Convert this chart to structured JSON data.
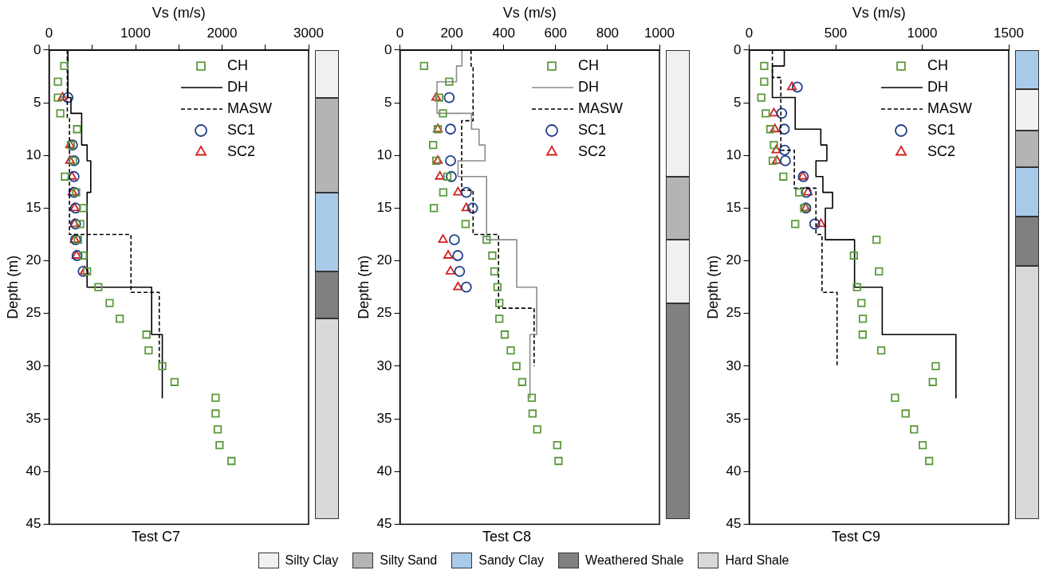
{
  "chart_data": [
    {
      "type": "scatter",
      "title": "Test C7",
      "xlabel": "Vs (m/s)",
      "ylabel": "Depth (m)",
      "xlim": [
        0,
        3000
      ],
      "xticks": [
        0,
        {
          "value": 500,
          "label": null
        },
        1000,
        {
          "value": 1500,
          "label": null
        },
        2000,
        {
          "value": 2500,
          "label": null
        },
        3000
      ],
      "ylim": [
        45,
        0
      ],
      "yticks": [
        0,
        5,
        10,
        15,
        20,
        25,
        30,
        35,
        40,
        45
      ],
      "grid": false,
      "legend": "top right",
      "series": [
        {
          "name": "CH",
          "type": "scatter",
          "marker": "square",
          "color": "#5b9a3c",
          "x": [
            176,
            102,
            102,
            130,
            324,
            253,
            278,
            183,
            313,
            394,
            359,
            334,
            394,
            440,
            570,
            700,
            817,
            1126,
            1151,
            1309,
            1450,
            1925,
            1925,
            1950,
            1971,
            2108
          ],
          "values": [
            1.5,
            3,
            4.5,
            6,
            7.5,
            9,
            10.5,
            12,
            13.5,
            15,
            16.5,
            18,
            19.5,
            21,
            22.5,
            24,
            25.5,
            27,
            28.5,
            30,
            31.5,
            33,
            34.5,
            36,
            37.5,
            39
          ]
        },
        {
          "name": "DH",
          "type": "line",
          "line_style": "solid",
          "color": "#000000",
          "x": [
            218,
            218,
            253,
            253,
            377,
            377,
            440,
            440,
            482,
            482,
            440,
            440,
            1186,
            1186,
            1309,
            1309
          ],
          "values": [
            0,
            4.5,
            4.5,
            6,
            6,
            9,
            9,
            10.5,
            10.5,
            13.5,
            13.5,
            22.5,
            22.5,
            27,
            27,
            33
          ]
        },
        {
          "name": "MASW",
          "type": "line",
          "line_style": "dashed",
          "color": "#000000",
          "x": [
            211,
            211,
            236,
            236,
            947,
            947,
            1274,
            1274
          ],
          "values": [
            0,
            6.5,
            6.5,
            17.5,
            17.5,
            23,
            23,
            30
          ]
        },
        {
          "name": "SC1",
          "type": "scatter",
          "marker": "circle",
          "color": "#1f3f8a",
          "x": [
            218,
            271,
            289,
            289,
            289,
            306,
            306,
            306,
            324,
            394
          ],
          "values": [
            4.5,
            9,
            10.5,
            12,
            13.5,
            15,
            16.5,
            18,
            19.5,
            21
          ]
        },
        {
          "name": "SC2",
          "type": "scatter",
          "marker": "triangle",
          "color": "#d42020",
          "x": [
            155,
            243,
            243,
            264,
            271,
            296,
            296,
            296,
            317,
            412
          ],
          "values": [
            4.5,
            9,
            10.5,
            12,
            13.5,
            15,
            16.5,
            18,
            19.5,
            21
          ]
        }
      ],
      "annotations": [
        "Silty Clay",
        "Silty Sand",
        "Sandy Clay",
        "Weathered Shale",
        "Hard Shale"
      ]
    },
    {
      "type": "scatter",
      "title": "Test C8",
      "xlabel": "Vs (m/s)",
      "ylabel": "Depth (m)",
      "xlim": [
        0,
        1000
      ],
      "xticks": [
        0,
        200,
        400,
        600,
        800,
        1000
      ],
      "ylim": [
        45,
        0
      ],
      "yticks": [
        0,
        5,
        10,
        15,
        20,
        25,
        30,
        35,
        40,
        45
      ],
      "grid": false,
      "legend": "top right",
      "series": [
        {
          "name": "CH",
          "type": "scatter",
          "marker": "square",
          "color": "#5b9a3c",
          "x": [
            93,
            190,
            151,
            166,
            146,
            128,
            140,
            183,
            167,
            131,
            253,
            334,
            356,
            364,
            376,
            383,
            383,
            404,
            427,
            449,
            471,
            508,
            511,
            529,
            606,
            611
          ],
          "values": [
            1.5,
            3,
            4.5,
            6,
            7.5,
            9,
            10.5,
            12,
            13.5,
            15,
            16.5,
            18,
            19.5,
            21,
            22.5,
            24,
            25.5,
            27,
            28.5,
            30,
            31.5,
            33,
            34.5,
            36,
            37.5,
            39
          ]
        },
        {
          "name": "DH",
          "type": "line",
          "line_style": "solid",
          "color": "#8c8c8c",
          "x": [
            239,
            239,
            218,
            218,
            143,
            143,
            276,
            276,
            305,
            305,
            328,
            328,
            224,
            224,
            334,
            334,
            450,
            450,
            527,
            527,
            501,
            501
          ],
          "values": [
            0,
            1.5,
            1.5,
            3,
            3,
            6,
            6,
            7.5,
            7.5,
            9,
            9,
            10.5,
            10.5,
            12,
            12,
            18,
            18,
            22.5,
            22.5,
            27,
            27,
            33
          ]
        },
        {
          "name": "MASW",
          "type": "line",
          "line_style": "dashed",
          "color": "#000000",
          "x": [
            274,
            274,
            282,
            282,
            238,
            238,
            282,
            282,
            380,
            380,
            517,
            517
          ],
          "values": [
            0,
            1.5,
            1.5,
            6.7,
            6.7,
            13.3,
            13.3,
            17.5,
            17.5,
            24.5,
            24.5,
            30
          ]
        },
        {
          "name": "SC1",
          "type": "scatter",
          "marker": "circle",
          "color": "#1f3f8a",
          "x": [
            190,
            195,
            195,
            198,
            256,
            280,
            210,
            223,
            230,
            256
          ],
          "values": [
            4.5,
            7.5,
            10.5,
            12,
            13.5,
            15,
            18,
            19.5,
            21,
            22.5
          ]
        },
        {
          "name": "SC2",
          "type": "scatter",
          "marker": "triangle",
          "color": "#d42020",
          "x": [
            140,
            146,
            146,
            154,
            224,
            256,
            166,
            186,
            195,
            224
          ],
          "values": [
            4.5,
            7.5,
            10.5,
            12,
            13.5,
            15,
            18,
            19.5,
            21,
            22.5
          ]
        }
      ]
    },
    {
      "type": "scatter",
      "title": "Test C9",
      "xlabel": "Vs (m/s)",
      "ylabel": "Depth (m)",
      "xlim": [
        0,
        1500
      ],
      "xticks": [
        0,
        500,
        1000,
        1500
      ],
      "ylim": [
        45,
        0
      ],
      "yticks": [
        0,
        5,
        10,
        15,
        20,
        25,
        30,
        35,
        40,
        45
      ],
      "grid": false,
      "legend": "top right",
      "series": [
        {
          "name": "CH",
          "type": "scatter",
          "marker": "square",
          "color": "#5b9a3c",
          "x": [
            87,
            87,
            70,
            96,
            122,
            143,
            136,
            197,
            289,
            318,
            266,
            736,
            605,
            750,
            623,
            649,
            657,
            656,
            763,
            1078,
            1061,
            843,
            904,
            953,
            1003,
            1040
          ],
          "values": [
            1.5,
            3,
            4.5,
            6,
            7.5,
            9,
            10.5,
            12,
            13.5,
            15,
            16.5,
            18,
            19.5,
            21,
            22.5,
            24,
            25.5,
            27,
            28.5,
            30,
            31.5,
            33,
            34.5,
            36,
            37.5,
            39
          ]
        },
        {
          "name": "DH",
          "type": "line",
          "line_style": "solid",
          "color": "#000000",
          "x": [
            203,
            203,
            134,
            134,
            266,
            266,
            414,
            414,
            449,
            449,
            386,
            386,
            426,
            426,
            482,
            482,
            440,
            440,
            609,
            609,
            769,
            769,
            1195,
            1195
          ],
          "values": [
            0,
            1.5,
            1.5,
            4.5,
            4.5,
            7.5,
            7.5,
            9,
            9,
            10.5,
            10.5,
            12,
            12,
            13.5,
            13.5,
            15,
            15,
            18,
            18,
            22.5,
            22.5,
            27,
            27,
            33
          ]
        },
        {
          "name": "MASW",
          "type": "line",
          "line_style": "dashed",
          "color": "#000000",
          "x": [
            134,
            134,
            183,
            183,
            261,
            261,
            386,
            386,
            421,
            421,
            508,
            508
          ],
          "values": [
            0,
            2.6,
            2.6,
            9.5,
            9.5,
            13.1,
            13.1,
            17.5,
            17.5,
            23,
            23,
            30
          ]
        },
        {
          "name": "SC1",
          "type": "scatter",
          "marker": "circle",
          "color": "#1f3f8a",
          "x": [
            278,
            188,
            203,
            205,
            209,
            313,
            330,
            327,
            379
          ],
          "values": [
            3.5,
            6,
            7.5,
            9.5,
            10.5,
            12,
            13.5,
            15,
            16.5
          ]
        },
        {
          "name": "SC2",
          "type": "scatter",
          "marker": "triangle",
          "color": "#d42020",
          "x": [
            247,
            143,
            148,
            157,
            160,
            310,
            339,
            327,
            414
          ],
          "values": [
            3.5,
            6,
            7.5,
            9.5,
            10.5,
            12,
            13.5,
            15,
            16.5
          ]
        }
      ]
    }
  ]
}
